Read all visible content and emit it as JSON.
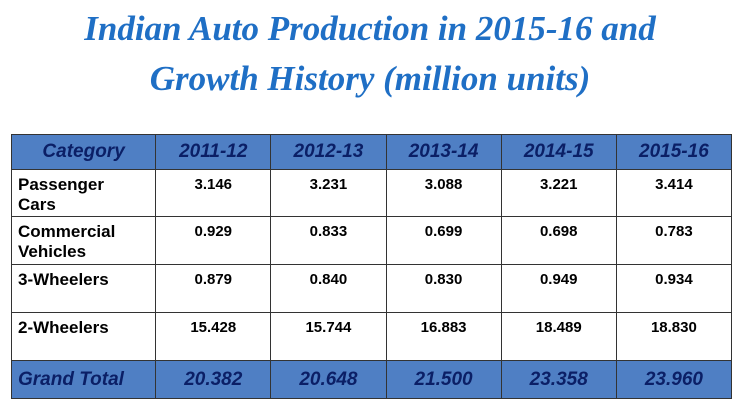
{
  "title": {
    "line1": "Indian Auto Production in 2015-16 and",
    "line2": "Growth History (million units)"
  },
  "table": {
    "header": {
      "category": "Category",
      "years": [
        "2011-12",
        "2012-13",
        "2013-14",
        "2014-15",
        "2015-16"
      ]
    },
    "rows": [
      {
        "label_line1": "Passenger",
        "label_line2": "Cars",
        "values": [
          "3.146",
          "3.231",
          "3.088",
          "3.221",
          "3.414"
        ]
      },
      {
        "label_line1": "Commercial",
        "label_line2": "Vehicles",
        "values": [
          "0.929",
          "0.833",
          "0.699",
          "0.698",
          "0.783"
        ]
      },
      {
        "label_line1": "3-Wheelers",
        "label_line2": "",
        "values": [
          "0.879",
          "0.840",
          "0.830",
          "0.949",
          "0.934"
        ]
      },
      {
        "label_line1": "2-Wheelers",
        "label_line2": "",
        "values": [
          "15.428",
          "15.744",
          "16.883",
          "18.489",
          "18.830"
        ]
      }
    ],
    "total": {
      "label": "Grand Total",
      "values": [
        "20.382",
        "20.648",
        "21.500",
        "23.358",
        "23.960"
      ]
    }
  },
  "colors": {
    "title": "#1f6fc5",
    "header_fill": "#4f7fc4",
    "header_text": "#0b1f66"
  }
}
